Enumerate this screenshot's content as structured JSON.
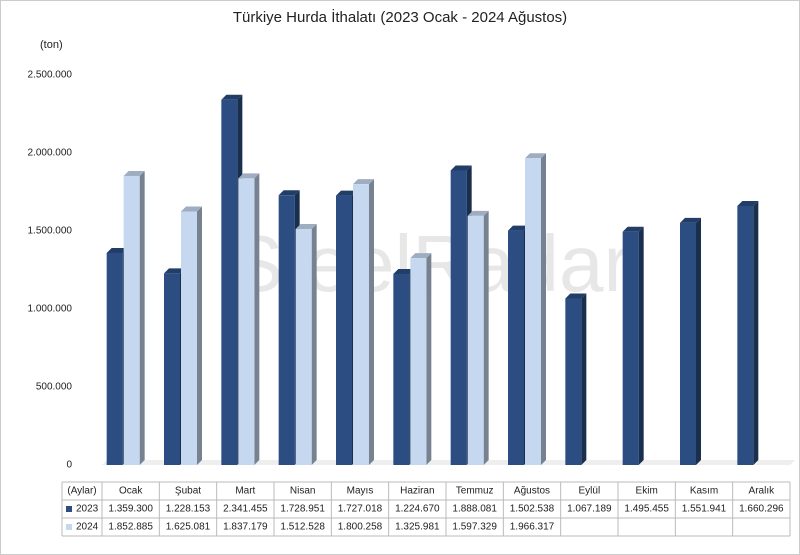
{
  "chart_data": {
    "type": "bar",
    "title": "Türkiye Hurda İthalatı (2023 Ocak - 2024 Ağustos)",
    "y_label": "(ton)",
    "table_header": "(Aylar)",
    "watermark": "SteelRadar",
    "categories": [
      "Ocak",
      "Şubat",
      "Mart",
      "Nisan",
      "Mayıs",
      "Haziran",
      "Temmuz",
      "Ağustos",
      "Eylül",
      "Ekim",
      "Kasım",
      "Aralık"
    ],
    "series": [
      {
        "name": "2023",
        "color": "#2b4d82",
        "values": [
          1359300,
          1228153,
          2341455,
          1728951,
          1727018,
          1224670,
          1888081,
          1502538,
          1067189,
          1495455,
          1551941,
          1660296
        ],
        "value_labels": [
          "1.359.300",
          "1.228.153",
          "2.341.455",
          "1.728.951",
          "1.727.018",
          "1.224.670",
          "1.888.081",
          "1.502.538",
          "1.067.189",
          "1.495.455",
          "1.551.941",
          "1.660.296"
        ]
      },
      {
        "name": "2024",
        "color": "#c6d8f0",
        "values": [
          1852885,
          1625081,
          1837179,
          1512528,
          1800258,
          1325981,
          1597329,
          1966317,
          null,
          null,
          null,
          null
        ],
        "value_labels": [
          "1.852.885",
          "1.625.081",
          "1.837.179",
          "1.512.528",
          "1.800.258",
          "1.325.981",
          "1.597.329",
          "1.966.317",
          null,
          null,
          null,
          null
        ]
      }
    ],
    "ylim": [
      0,
      2500000
    ],
    "yticks": [
      0,
      {
        "value": 500000,
        "label": "500.000"
      },
      {
        "value": 1000000,
        "label": "1.000.000"
      },
      {
        "value": 1500000,
        "label": "1.500.000"
      },
      {
        "value": 2000000,
        "label": "2.000.000"
      },
      {
        "value": 2500000,
        "label": "2.500.000"
      }
    ],
    "grid": false
  }
}
